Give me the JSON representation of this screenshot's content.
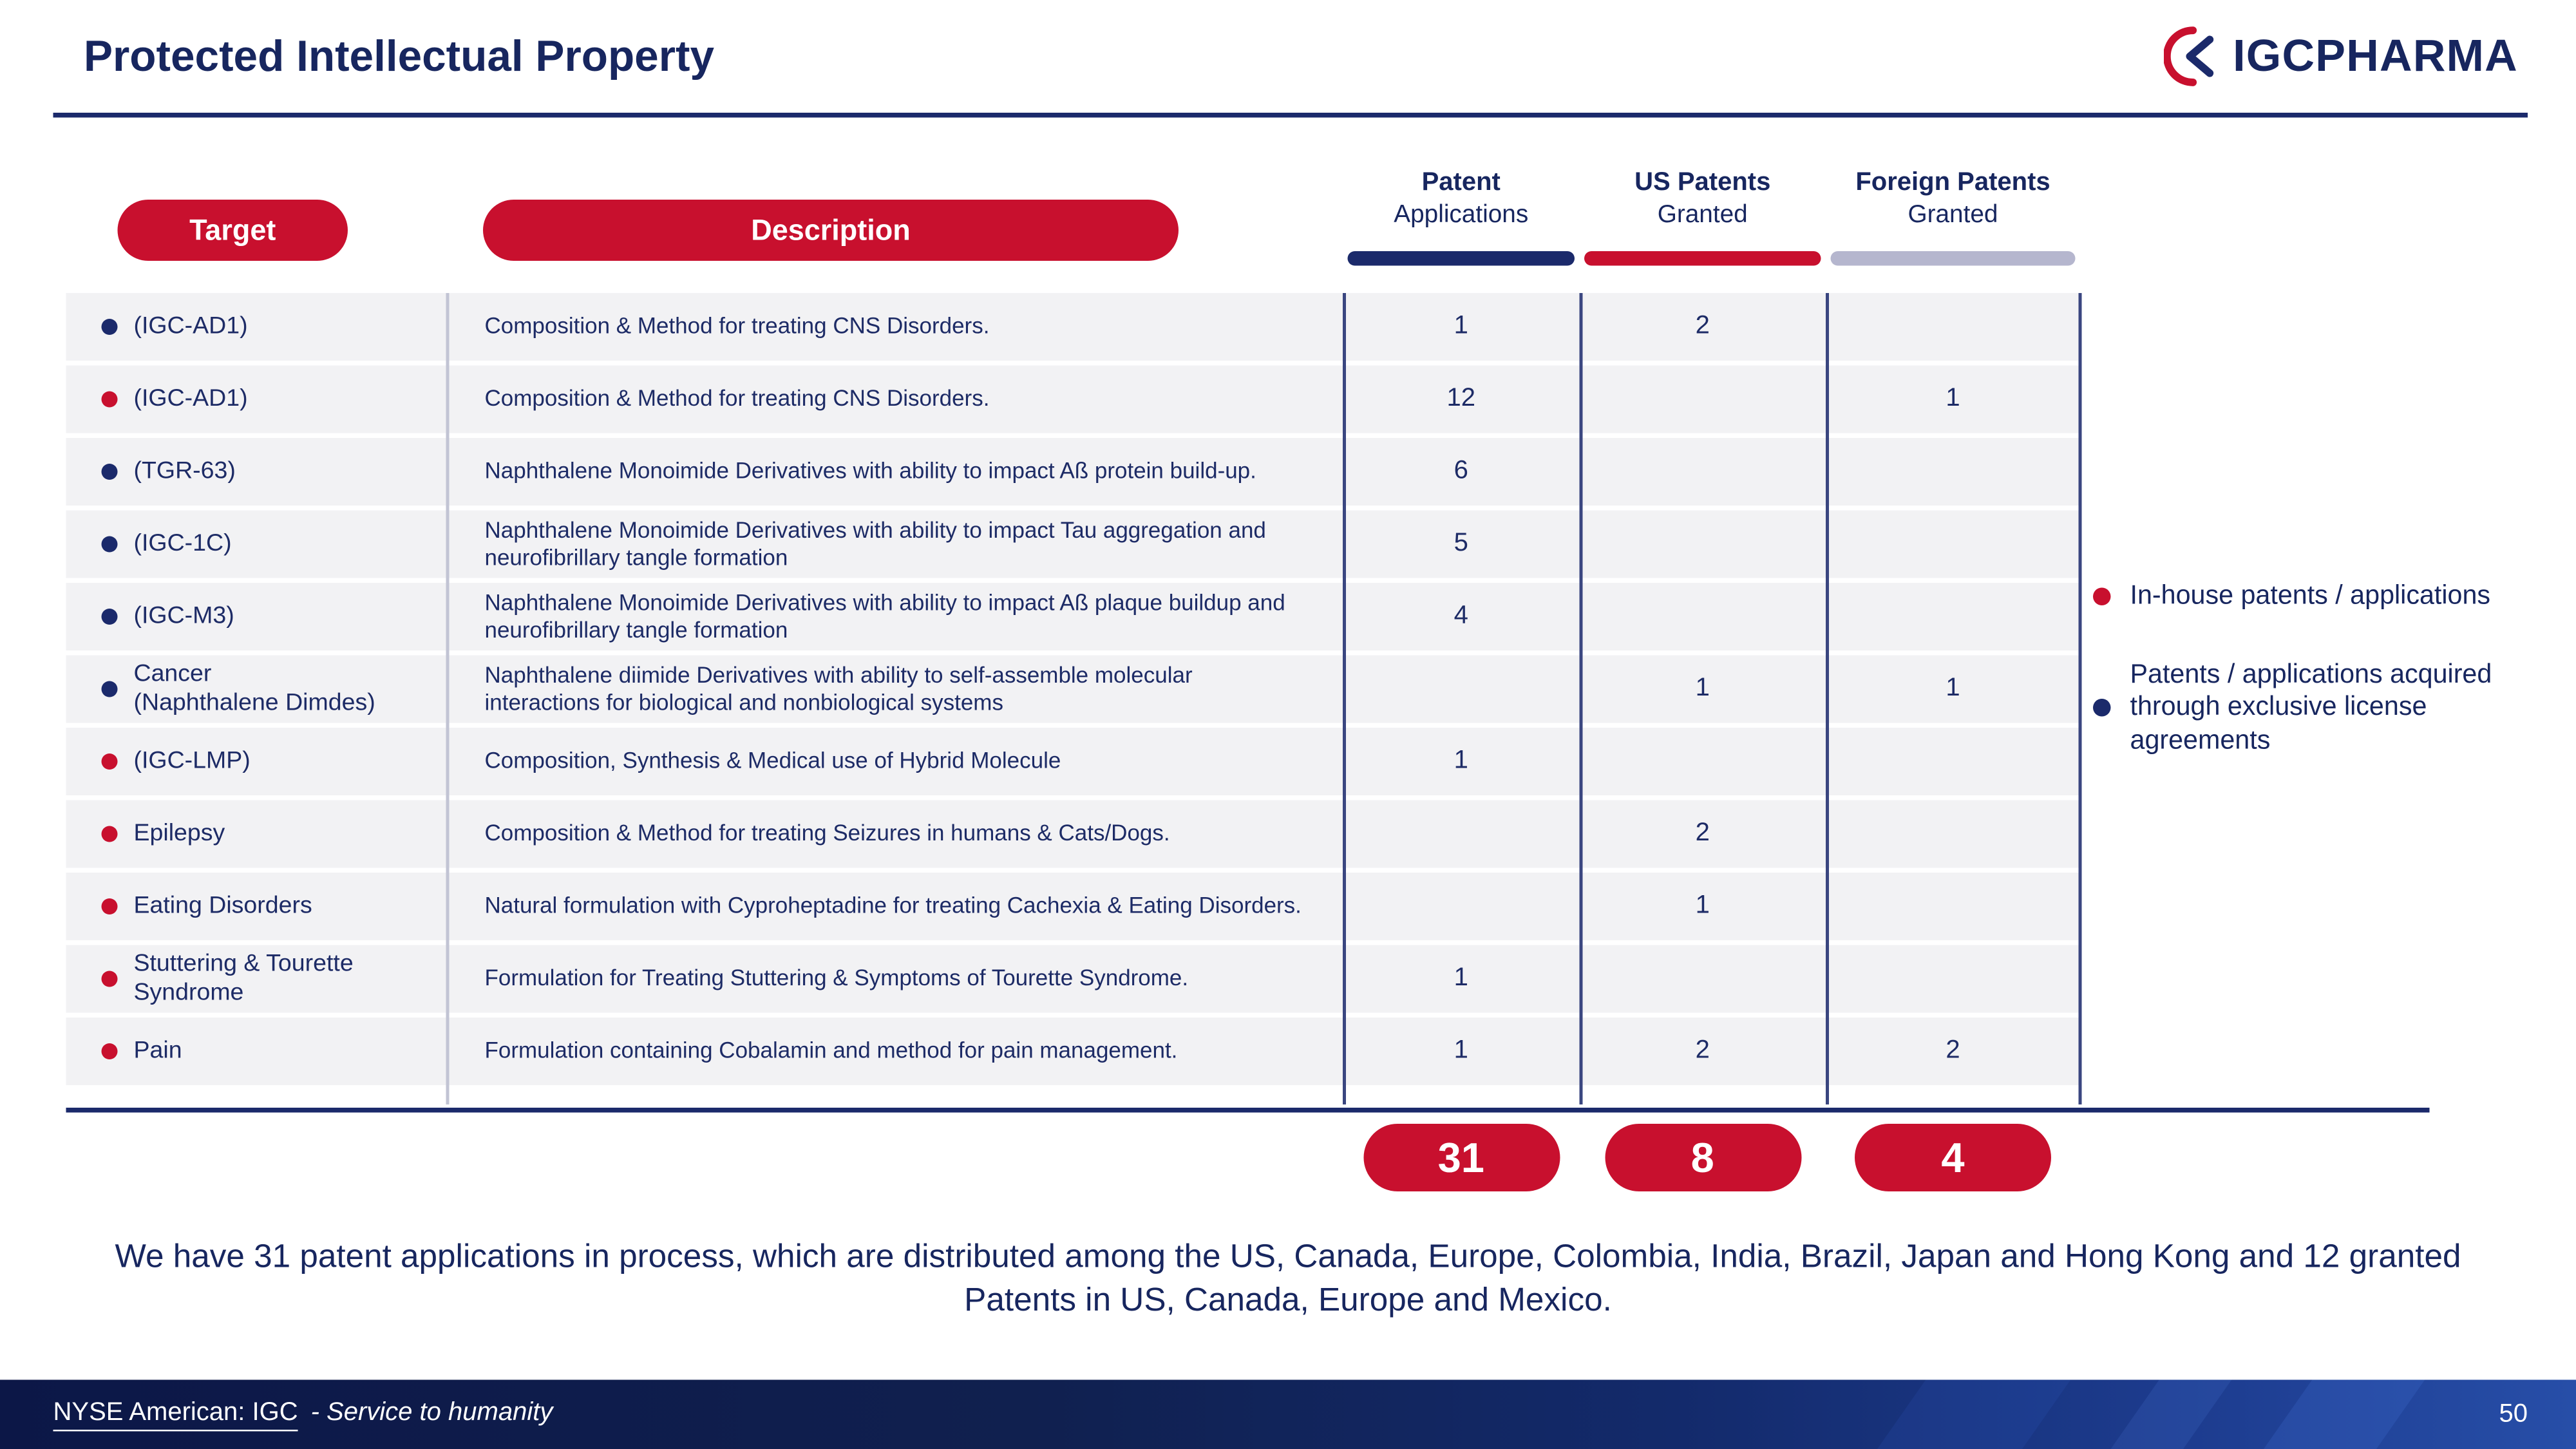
{
  "header": {
    "title": "Protected Intellectual Property",
    "logo": {
      "bold": "IGC",
      "rest": "PHARMA"
    }
  },
  "table": {
    "target_header": "Target",
    "description_header": "Description",
    "stat_columns": [
      {
        "id": "apps",
        "line1": "Patent",
        "line2": "Applications",
        "bar_color": "#1b2a6b"
      },
      {
        "id": "us",
        "line1": "US Patents",
        "line2": "Granted",
        "bar_color": "#c8102e"
      },
      {
        "id": "foreign",
        "line1": "Foreign Patents",
        "line2": "Granted",
        "bar_color": "#b5b6ce"
      }
    ],
    "rows": [
      {
        "bullet": "navy",
        "target": "(IGC-AD1)",
        "description": "Composition & Method for treating CNS Disorders.",
        "apps": "1",
        "us": "2",
        "foreign": ""
      },
      {
        "bullet": "red",
        "target": "(IGC-AD1)",
        "description": "Composition & Method for treating CNS Disorders.",
        "apps": "12",
        "us": "",
        "foreign": "1"
      },
      {
        "bullet": "navy",
        "target": "(TGR-63)",
        "description": "Naphthalene Monoimide Derivatives with ability to impact Aß protein build-up.",
        "apps": "6",
        "us": "",
        "foreign": ""
      },
      {
        "bullet": "navy",
        "target": "(IGC-1C)",
        "description": "Naphthalene Monoimide Derivatives with ability to impact Tau aggregation and neurofibrillary tangle formation",
        "apps": "5",
        "us": "",
        "foreign": ""
      },
      {
        "bullet": "navy",
        "target": "(IGC-M3)",
        "description": "Naphthalene Monoimide Derivatives with ability to impact Aß plaque buildup and neurofibrillary tangle formation",
        "apps": "4",
        "us": "",
        "foreign": ""
      },
      {
        "bullet": "navy",
        "target": "Cancer\n(Naphthalene Dimdes)",
        "description": "Naphthalene diimide Derivatives with ability to self-assemble molecular interactions for biological and nonbiological systems",
        "apps": "",
        "us": "1",
        "foreign": "1"
      },
      {
        "bullet": "red",
        "target": "(IGC-LMP)",
        "description": "Composition, Synthesis & Medical use of Hybrid Molecule",
        "apps": "1",
        "us": "",
        "foreign": ""
      },
      {
        "bullet": "red",
        "target": "Epilepsy",
        "description": "Composition & Method for treating Seizures in humans & Cats/Dogs.",
        "apps": "",
        "us": "2",
        "foreign": ""
      },
      {
        "bullet": "red",
        "target": "Eating Disorders",
        "description": "Natural formulation with Cyproheptadine for treating Cachexia & Eating Disorders.",
        "apps": "",
        "us": "1",
        "foreign": ""
      },
      {
        "bullet": "red",
        "target": "Stuttering & Tourette Syndrome",
        "description": "Formulation for Treating Stuttering & Symptoms of Tourette Syndrome.",
        "apps": "1",
        "us": "",
        "foreign": ""
      },
      {
        "bullet": "red",
        "target": "Pain",
        "description": "Formulation containing Cobalamin and method for pain management.",
        "apps": "1",
        "us": "2",
        "foreign": "2"
      }
    ],
    "totals": {
      "apps": "31",
      "us": "8",
      "foreign": "4"
    }
  },
  "legend": {
    "items": [
      {
        "bullet_color": "red",
        "label": "In-house patents / applications"
      },
      {
        "bullet_color": "navy",
        "label": "Patents / applications acquired through exclusive license agreements"
      }
    ]
  },
  "summary": "We have 31 patent applications in process, which are distributed among the US, Canada, Europe, Colombia, India, Brazil, Japan and Hong Kong and 12 granted Patents in US, Canada, Europe and Mexico.",
  "footer": {
    "exchange": "NYSE American:  IGC",
    "tagline": "- Service to humanity",
    "page_number": "50"
  },
  "colors": {
    "navy": "#1b2a6b",
    "red": "#c8102e",
    "gray_bar": "#b5b6ce"
  }
}
